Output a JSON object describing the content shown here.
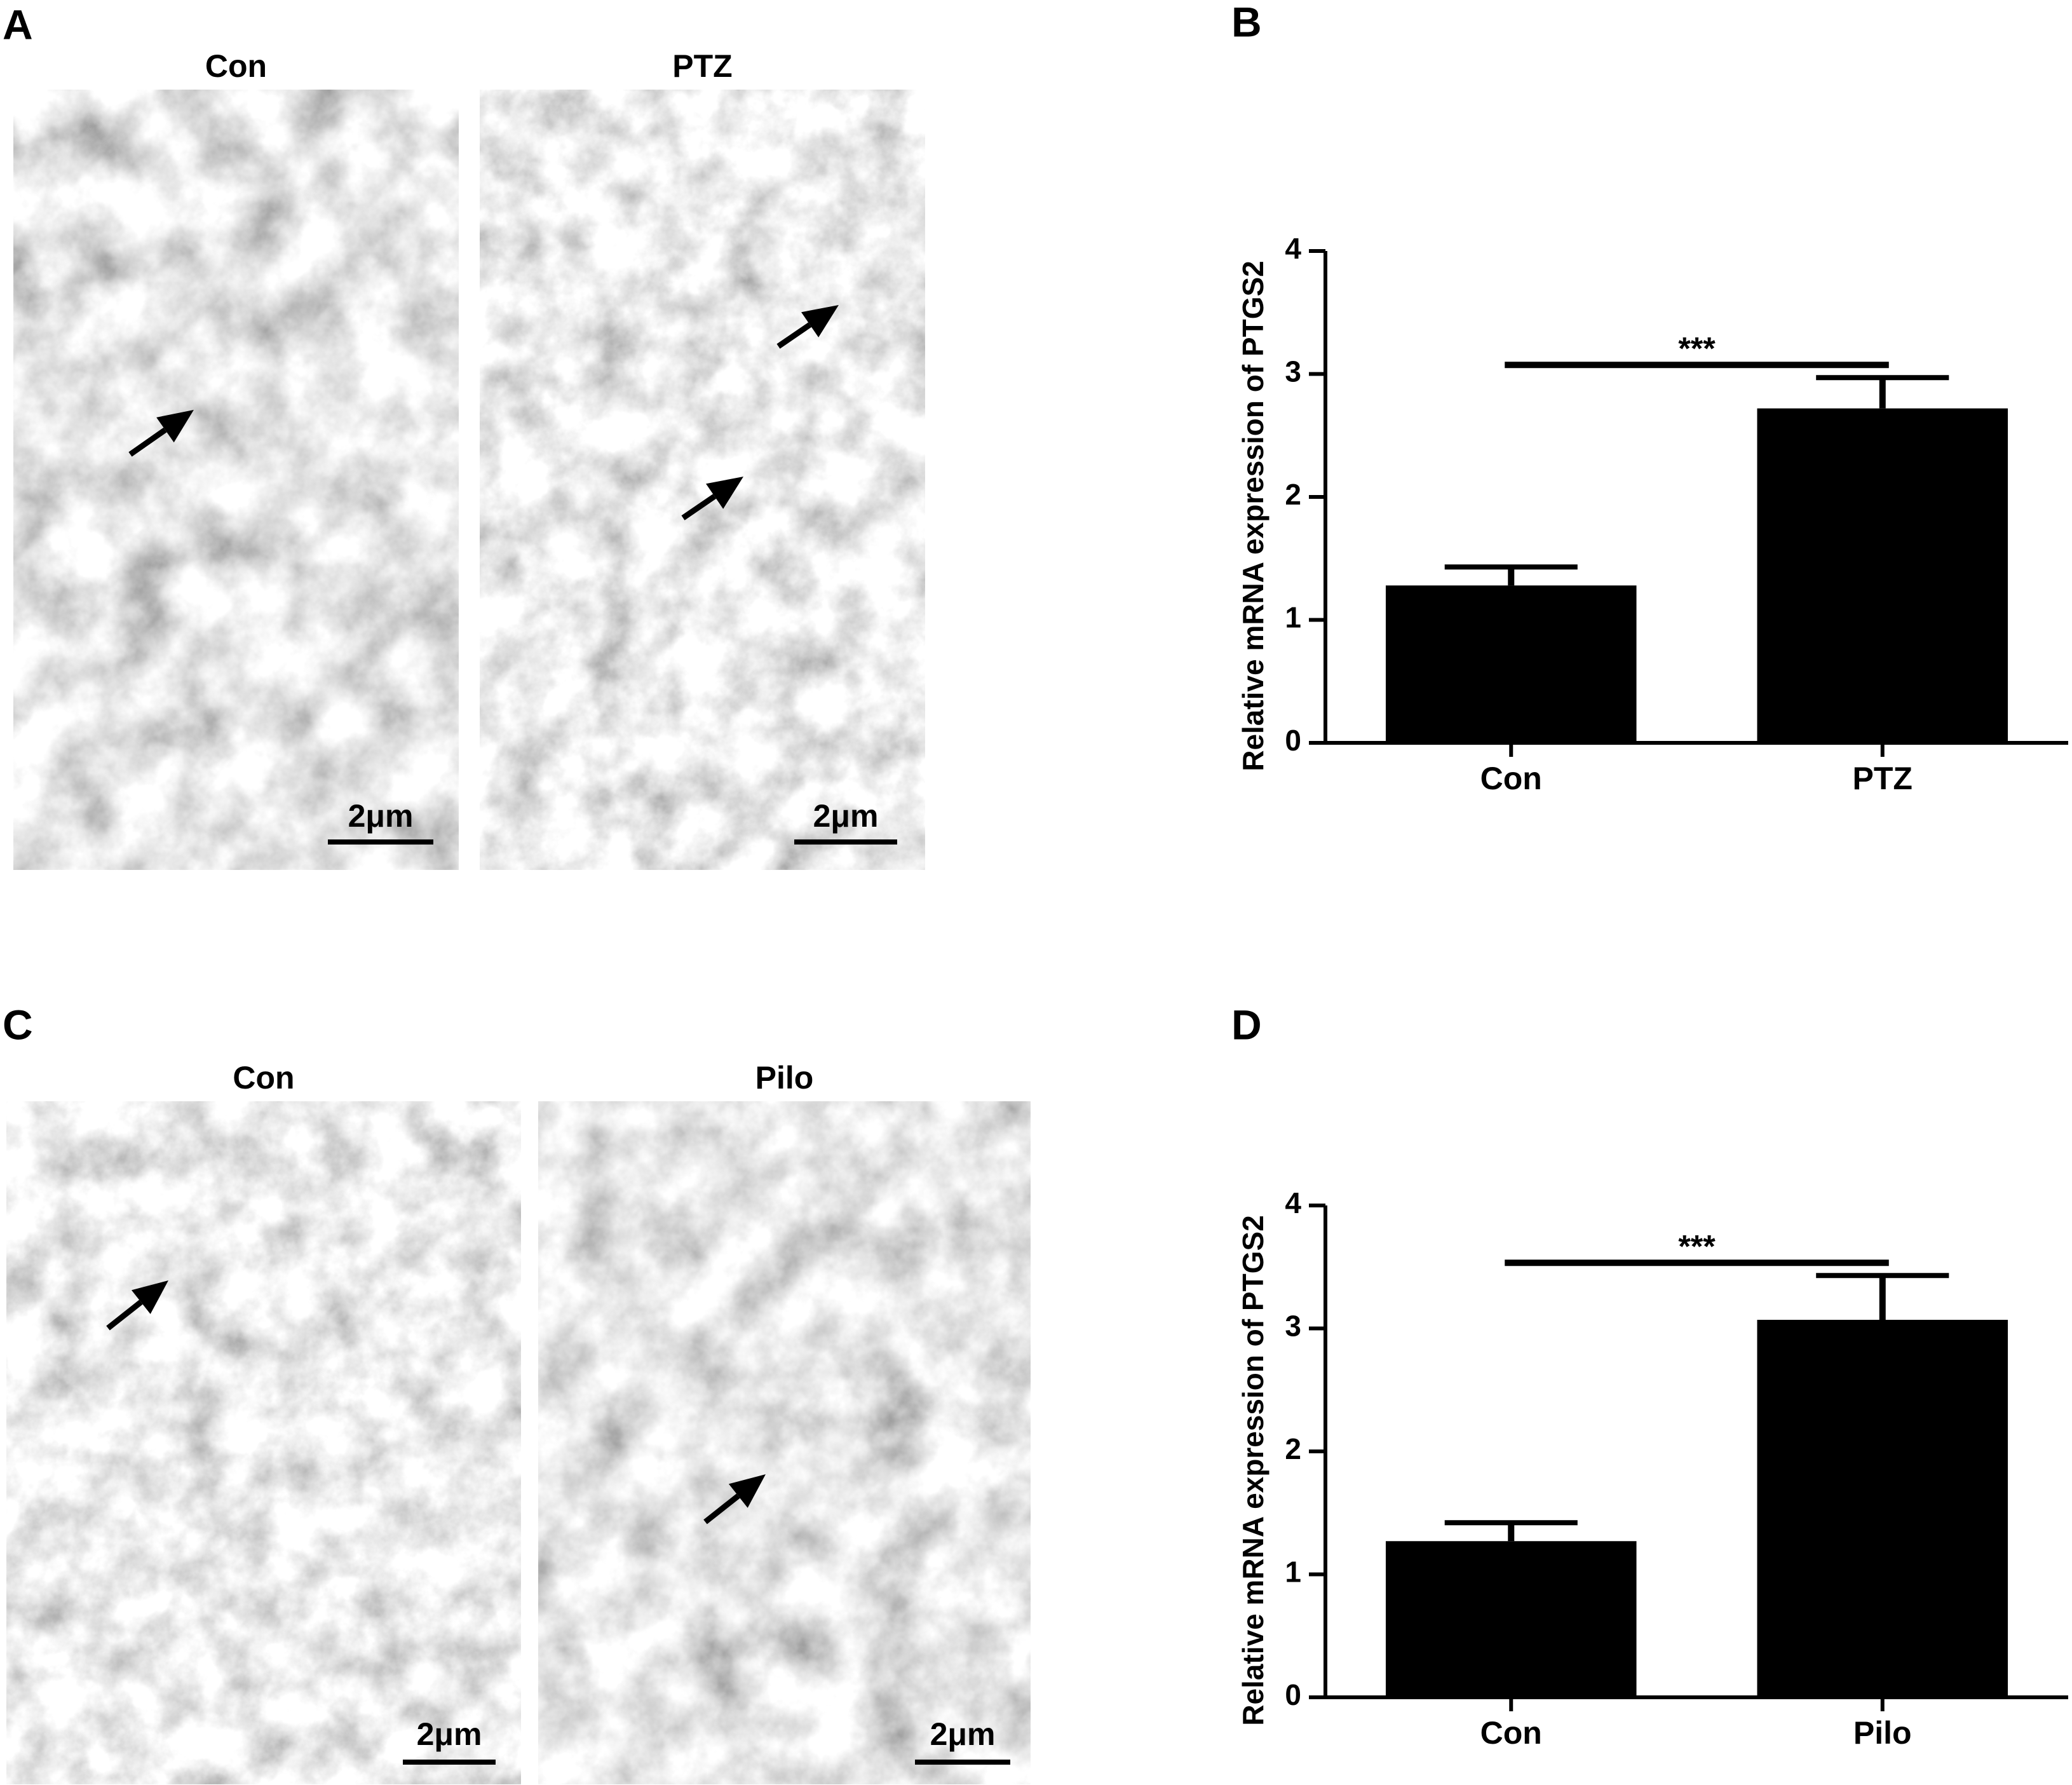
{
  "figure_panels": [
    {
      "label": "A",
      "images": [
        {
          "title": "Con",
          "scale_bar": "2μm"
        },
        {
          "title": "PTZ",
          "scale_bar": "2μm"
        }
      ]
    },
    {
      "label": "C",
      "images": [
        {
          "title": "Con",
          "scale_bar": "2μm"
        },
        {
          "title": "Pilo",
          "scale_bar": "2μm"
        }
      ]
    }
  ],
  "chart_data": [
    {
      "type": "bar",
      "panel_label": "B",
      "ylabel": "Relative mRNA expression of PTGS2",
      "categories": [
        "Con",
        "PTZ"
      ],
      "values": [
        1.28,
        2.72
      ],
      "errors": [
        0.15,
        0.25
      ],
      "color": "#000000",
      "ylim": [
        0,
        4
      ],
      "yticks": [
        0,
        1,
        2,
        3,
        4
      ],
      "annotation": "***"
    },
    {
      "type": "bar",
      "panel_label": "D",
      "ylabel": "Relative mRNA expression of PTGS2",
      "categories": [
        "Con",
        "Pilo"
      ],
      "values": [
        1.27,
        3.07
      ],
      "errors": [
        0.15,
        0.36
      ],
      "color": "#000000",
      "ylim": [
        0,
        4
      ],
      "yticks": [
        0,
        1,
        2,
        3,
        4
      ],
      "annotation": "***"
    }
  ]
}
